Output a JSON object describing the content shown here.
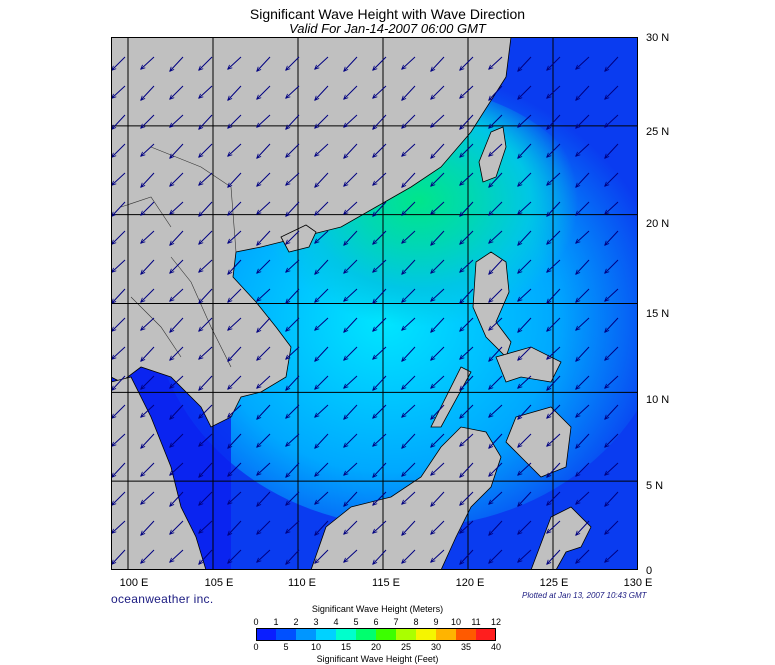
{
  "title": "Significant Wave Height with Wave Direction",
  "subtitle": "Valid For Jan-14-2007 06:00 GMT",
  "brand": "oceanweather inc.",
  "plotted": "Plotted at Jan 13, 2007 10:43 GMT",
  "colorbar": {
    "meters_title": "Significant Wave Height (Meters)",
    "feet_title": "Significant Wave Height (Feet)",
    "meters_ticks": [
      "0",
      "1",
      "2",
      "3",
      "4",
      "5",
      "6",
      "7",
      "8",
      "9",
      "10",
      "11",
      "12"
    ],
    "feet_ticks": [
      "0",
      "5",
      "10",
      "15",
      "20",
      "25",
      "30",
      "35",
      "40"
    ],
    "colors": [
      "#0a1eff",
      "#0050ff",
      "#0096ff",
      "#00d2ff",
      "#00ffcc",
      "#00ff6e",
      "#3cff00",
      "#aaff00",
      "#f5f500",
      "#ffb400",
      "#ff5a00",
      "#ff1e1e"
    ]
  },
  "map": {
    "lon_labels": [
      "100 E",
      "105 E",
      "110 E",
      "115 E",
      "120 E",
      "125 E",
      "130 E"
    ],
    "lat_labels": [
      "30 N",
      "25 N",
      "20 N",
      "15 N",
      "10 N",
      "5 N",
      "0"
    ],
    "lon_range": [
      99,
      130
    ],
    "lat_range": [
      0,
      30
    ],
    "land_color": "#c0c0c0",
    "grid": true
  }
}
